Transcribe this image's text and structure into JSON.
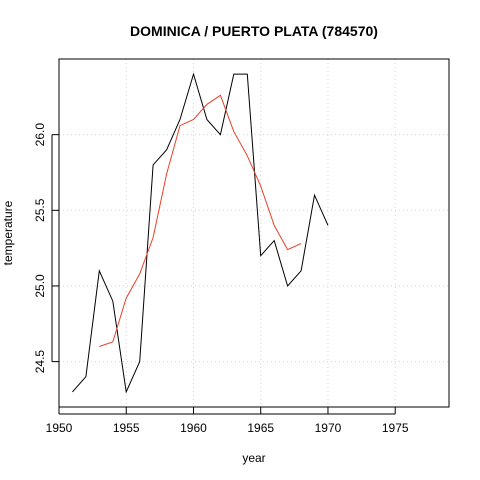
{
  "chart_data": {
    "type": "line",
    "title": "DOMINICA / PUERTO PLATA (784570)",
    "xlabel": "year",
    "ylabel": "temperature",
    "xlim": [
      1950,
      1979
    ],
    "ylim": [
      24.2,
      26.5
    ],
    "x_ticks": [
      1950,
      1955,
      1960,
      1965,
      1970,
      1975
    ],
    "y_ticks": [
      24.5,
      25.0,
      25.5,
      26.0
    ],
    "y_tick_labels": [
      "24.5",
      "25.0",
      "25.5",
      "26.0"
    ],
    "grid": true,
    "series": [
      {
        "color": "#000000",
        "x": [
          1951,
          1952,
          1953,
          1954,
          1955,
          1956,
          1957,
          1958,
          1959,
          1960,
          1961,
          1962,
          1963,
          1964,
          1965,
          1966,
          1967,
          1968,
          1969,
          1970
        ],
        "y": [
          24.3,
          24.4,
          25.1,
          24.9,
          24.3,
          24.5,
          25.8,
          25.9,
          26.1,
          26.4,
          26.1,
          26.0,
          26.4,
          26.4,
          25.2,
          25.3,
          25.0,
          25.1,
          25.6,
          25.4
        ]
      },
      {
        "color": "#e8402a",
        "x": [
          1953,
          1954,
          1955,
          1956,
          1957,
          1958,
          1959,
          1960,
          1961,
          1962,
          1963,
          1964,
          1965,
          1966,
          1967,
          1968
        ],
        "y": [
          24.6,
          24.63,
          24.92,
          25.08,
          25.32,
          25.74,
          26.06,
          26.1,
          26.2,
          26.26,
          26.02,
          25.86,
          25.66,
          25.4,
          25.24,
          25.28
        ]
      }
    ]
  }
}
